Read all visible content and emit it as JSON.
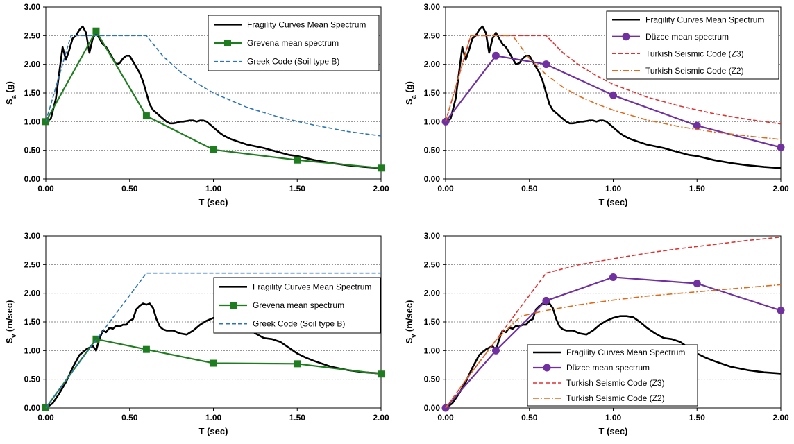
{
  "chart_data": [
    {
      "type": "line",
      "title": "",
      "xlabel": "T (sec)",
      "ylabel": {
        "main": "S",
        "sub": "a",
        "unit": " (g)"
      },
      "xlim": [
        0,
        2
      ],
      "ylim": [
        0,
        3
      ],
      "xticks": [
        "0.00",
        "0.50",
        "1.00",
        "1.50",
        "2.00"
      ],
      "yticks": [
        "0.00",
        "0.50",
        "1.00",
        "1.50",
        "2.00",
        "2.50",
        "3.00"
      ],
      "grid": "horizontal dashed",
      "legend_position": "top-right",
      "series": [
        {
          "name": "Fragility Curves Mean Spectrum",
          "color": "#000000",
          "style": "solid",
          "marker": "none",
          "x": [
            0,
            0.03,
            0.06,
            0.08,
            0.1,
            0.12,
            0.14,
            0.16,
            0.18,
            0.2,
            0.22,
            0.24,
            0.26,
            0.28,
            0.3,
            0.32,
            0.34,
            0.36,
            0.38,
            0.4,
            0.42,
            0.44,
            0.46,
            0.48,
            0.5,
            0.52,
            0.54,
            0.56,
            0.58,
            0.6,
            0.62,
            0.64,
            0.66,
            0.68,
            0.7,
            0.72,
            0.74,
            0.76,
            0.78,
            0.8,
            0.82,
            0.84,
            0.86,
            0.88,
            0.9,
            0.92,
            0.94,
            0.96,
            0.98,
            1.0,
            1.02,
            1.04,
            1.06,
            1.08,
            1.1,
            1.15,
            1.2,
            1.25,
            1.3,
            1.35,
            1.4,
            1.45,
            1.5,
            1.6,
            1.7,
            1.8,
            1.9,
            2.0
          ],
          "y": [
            1.0,
            1.05,
            1.4,
            1.85,
            2.3,
            2.08,
            2.25,
            2.45,
            2.5,
            2.6,
            2.66,
            2.55,
            2.2,
            2.45,
            2.55,
            2.45,
            2.35,
            2.3,
            2.2,
            2.1,
            2.0,
            2.02,
            2.1,
            2.15,
            2.15,
            2.05,
            1.95,
            1.85,
            1.7,
            1.5,
            1.3,
            1.2,
            1.15,
            1.1,
            1.05,
            1.0,
            0.97,
            0.97,
            0.98,
            1.0,
            1.0,
            1.01,
            1.02,
            1.02,
            1.0,
            1.02,
            1.02,
            1.0,
            0.95,
            0.9,
            0.85,
            0.8,
            0.76,
            0.73,
            0.7,
            0.65,
            0.6,
            0.57,
            0.54,
            0.5,
            0.46,
            0.42,
            0.4,
            0.33,
            0.28,
            0.24,
            0.21,
            0.19
          ]
        },
        {
          "name": "Grevena mean spectrum",
          "color": "#1e7d1e",
          "style": "solid",
          "marker": "square",
          "x": [
            0,
            0.3,
            0.6,
            1.0,
            1.5,
            2.0
          ],
          "y": [
            1.0,
            2.58,
            1.1,
            0.51,
            0.33,
            0.19
          ]
        },
        {
          "name": "Greek Code (Soil type B)",
          "color": "#2e75b6",
          "style": "dashed",
          "marker": "none",
          "x": [
            0,
            0.15,
            0.6,
            0.7,
            0.8,
            0.9,
            1.0,
            1.2,
            1.4,
            1.6,
            1.8,
            2.0
          ],
          "y": [
            1.0,
            2.5,
            2.5,
            2.14,
            1.875,
            1.67,
            1.5,
            1.25,
            1.07,
            0.94,
            0.83,
            0.75
          ]
        }
      ]
    },
    {
      "type": "line",
      "title": "",
      "xlabel": "T (sec)",
      "ylabel": {
        "main": "S",
        "sub": "a",
        "unit": " (g)"
      },
      "xlim": [
        0,
        2
      ],
      "ylim": [
        0,
        3
      ],
      "xticks": [
        "0.00",
        "0.50",
        "1.00",
        "1.50",
        "2.00"
      ],
      "yticks": [
        "0.00",
        "0.50",
        "1.00",
        "1.50",
        "2.00",
        "2.50",
        "3.00"
      ],
      "grid": "horizontal dashed",
      "legend_position": "top-right",
      "series": [
        {
          "name": "Fragility Curves Mean Spectrum",
          "color": "#000000",
          "style": "solid",
          "marker": "none",
          "x": [
            0,
            0.03,
            0.06,
            0.08,
            0.1,
            0.12,
            0.14,
            0.16,
            0.18,
            0.2,
            0.22,
            0.24,
            0.26,
            0.28,
            0.3,
            0.32,
            0.34,
            0.36,
            0.38,
            0.4,
            0.42,
            0.44,
            0.46,
            0.48,
            0.5,
            0.52,
            0.54,
            0.56,
            0.58,
            0.6,
            0.62,
            0.64,
            0.66,
            0.68,
            0.7,
            0.72,
            0.74,
            0.76,
            0.78,
            0.8,
            0.82,
            0.84,
            0.86,
            0.88,
            0.9,
            0.92,
            0.94,
            0.96,
            0.98,
            1.0,
            1.02,
            1.04,
            1.06,
            1.08,
            1.1,
            1.15,
            1.2,
            1.25,
            1.3,
            1.35,
            1.4,
            1.45,
            1.5,
            1.6,
            1.7,
            1.8,
            1.9,
            2.0
          ],
          "y": [
            1.0,
            1.05,
            1.4,
            1.85,
            2.3,
            2.08,
            2.25,
            2.45,
            2.5,
            2.6,
            2.66,
            2.55,
            2.2,
            2.45,
            2.55,
            2.45,
            2.35,
            2.3,
            2.2,
            2.1,
            2.0,
            2.02,
            2.1,
            2.15,
            2.15,
            2.05,
            1.95,
            1.85,
            1.7,
            1.5,
            1.3,
            1.2,
            1.15,
            1.1,
            1.05,
            1.0,
            0.97,
            0.97,
            0.98,
            1.0,
            1.0,
            1.01,
            1.02,
            1.02,
            1.0,
            1.02,
            1.02,
            1.0,
            0.95,
            0.9,
            0.85,
            0.8,
            0.76,
            0.73,
            0.7,
            0.65,
            0.6,
            0.57,
            0.54,
            0.5,
            0.46,
            0.42,
            0.4,
            0.33,
            0.28,
            0.24,
            0.21,
            0.19
          ]
        },
        {
          "name": "Düzce mean spectrum",
          "color": "#7030a0",
          "style": "solid",
          "marker": "circle",
          "x": [
            0,
            0.3,
            0.6,
            1.0,
            1.5,
            2.0
          ],
          "y": [
            1.0,
            2.15,
            2.0,
            1.46,
            0.93,
            0.55
          ]
        },
        {
          "name": "Turkish Seismic Code (Z3)",
          "color": "#e03030",
          "style": "dashed",
          "marker": "none",
          "x": [
            0,
            0.15,
            0.6,
            0.7,
            0.8,
            0.9,
            1.0,
            1.2,
            1.4,
            1.6,
            1.8,
            2.0
          ],
          "y": [
            1.0,
            2.5,
            2.5,
            2.2,
            1.98,
            1.8,
            1.65,
            1.43,
            1.27,
            1.14,
            1.04,
            0.96
          ]
        },
        {
          "name": "Turkish Seismic Code (Z2)",
          "color": "#e06a1a",
          "style": "dashdot",
          "marker": "none",
          "x": [
            0,
            0.15,
            0.4,
            0.5,
            0.6,
            0.7,
            0.8,
            0.9,
            1.0,
            1.2,
            1.4,
            1.6,
            1.8,
            2.0
          ],
          "y": [
            1.0,
            2.5,
            2.5,
            2.1,
            1.82,
            1.6,
            1.44,
            1.31,
            1.2,
            1.03,
            0.91,
            0.82,
            0.75,
            0.69
          ]
        }
      ]
    },
    {
      "type": "line",
      "title": "",
      "xlabel": "T (sec)",
      "ylabel": {
        "main": "S",
        "sub": "v",
        "unit": " (m/sec)"
      },
      "xlim": [
        0,
        2
      ],
      "ylim": [
        0,
        3
      ],
      "xticks": [
        "0.00",
        "0.50",
        "1.00",
        "1.50",
        "2.00"
      ],
      "yticks": [
        "0.00",
        "0.50",
        "1.00",
        "1.50",
        "2.00",
        "2.50",
        "3.00"
      ],
      "grid": "horizontal dashed",
      "legend_position": "center-right",
      "series": [
        {
          "name": "Fragility Curves Mean Spectrum",
          "color": "#000000",
          "style": "solid",
          "marker": "none",
          "x": [
            0,
            0.04,
            0.08,
            0.12,
            0.16,
            0.2,
            0.24,
            0.28,
            0.3,
            0.32,
            0.34,
            0.36,
            0.38,
            0.4,
            0.42,
            0.44,
            0.46,
            0.48,
            0.5,
            0.52,
            0.54,
            0.56,
            0.58,
            0.6,
            0.62,
            0.64,
            0.66,
            0.68,
            0.7,
            0.72,
            0.76,
            0.8,
            0.84,
            0.88,
            0.92,
            0.96,
            1.0,
            1.04,
            1.08,
            1.12,
            1.16,
            1.2,
            1.25,
            1.3,
            1.35,
            1.4,
            1.45,
            1.5,
            1.55,
            1.6,
            1.7,
            1.8,
            1.9,
            2.0
          ],
          "y": [
            0,
            0.08,
            0.25,
            0.45,
            0.7,
            0.92,
            1.02,
            1.08,
            1.0,
            1.2,
            1.35,
            1.32,
            1.4,
            1.38,
            1.43,
            1.42,
            1.45,
            1.45,
            1.52,
            1.55,
            1.72,
            1.78,
            1.82,
            1.8,
            1.82,
            1.74,
            1.55,
            1.42,
            1.37,
            1.35,
            1.35,
            1.3,
            1.28,
            1.35,
            1.45,
            1.52,
            1.57,
            1.6,
            1.6,
            1.58,
            1.5,
            1.4,
            1.3,
            1.22,
            1.2,
            1.15,
            1.05,
            0.95,
            0.88,
            0.82,
            0.72,
            0.66,
            0.62,
            0.6
          ]
        },
        {
          "name": "Grevena mean spectrum",
          "color": "#1e7d1e",
          "style": "solid",
          "marker": "square",
          "x": [
            0,
            0.3,
            0.6,
            1.0,
            1.5,
            2.0
          ],
          "y": [
            0,
            1.2,
            1.02,
            0.78,
            0.77,
            0.59
          ]
        },
        {
          "name": "Greek Code (Soil type B)",
          "color": "#2e75b6",
          "style": "dashed",
          "marker": "none",
          "x": [
            0,
            0.15,
            0.6,
            2.0
          ],
          "y": [
            0,
            0.6,
            2.35,
            2.35
          ]
        }
      ]
    },
    {
      "type": "line",
      "title": "",
      "xlabel": "T (sec)",
      "ylabel": {
        "main": "S",
        "sub": "v",
        "unit": " (m/sec)"
      },
      "xlim": [
        0,
        2
      ],
      "ylim": [
        0,
        3
      ],
      "xticks": [
        "0.00",
        "0.50",
        "1.00",
        "1.50",
        "2.00"
      ],
      "yticks": [
        "0.00",
        "0.50",
        "1.00",
        "1.50",
        "2.00",
        "2.50",
        "3.00"
      ],
      "grid": "horizontal dashed",
      "legend_position": "bottom-right",
      "series": [
        {
          "name": "Fragility Curves Mean Spectrum",
          "color": "#000000",
          "style": "solid",
          "marker": "none",
          "x": [
            0,
            0.04,
            0.08,
            0.12,
            0.16,
            0.2,
            0.24,
            0.28,
            0.3,
            0.32,
            0.34,
            0.36,
            0.38,
            0.4,
            0.42,
            0.44,
            0.46,
            0.48,
            0.5,
            0.52,
            0.54,
            0.56,
            0.58,
            0.6,
            0.62,
            0.64,
            0.66,
            0.68,
            0.7,
            0.72,
            0.76,
            0.8,
            0.84,
            0.88,
            0.92,
            0.96,
            1.0,
            1.04,
            1.08,
            1.12,
            1.16,
            1.2,
            1.25,
            1.3,
            1.35,
            1.4,
            1.45,
            1.5,
            1.55,
            1.6,
            1.7,
            1.8,
            1.9,
            2.0
          ],
          "y": [
            0,
            0.08,
            0.25,
            0.45,
            0.7,
            0.92,
            1.02,
            1.08,
            1.0,
            1.2,
            1.35,
            1.32,
            1.4,
            1.38,
            1.43,
            1.42,
            1.45,
            1.45,
            1.52,
            1.55,
            1.72,
            1.78,
            1.82,
            1.8,
            1.82,
            1.74,
            1.55,
            1.42,
            1.37,
            1.35,
            1.35,
            1.3,
            1.28,
            1.35,
            1.45,
            1.52,
            1.57,
            1.6,
            1.6,
            1.58,
            1.5,
            1.4,
            1.3,
            1.22,
            1.2,
            1.15,
            1.05,
            0.95,
            0.88,
            0.82,
            0.72,
            0.66,
            0.62,
            0.6
          ]
        },
        {
          "name": "Düzce mean spectrum",
          "color": "#7030a0",
          "style": "solid",
          "marker": "circle",
          "x": [
            0,
            0.3,
            0.6,
            1.0,
            1.5,
            2.0
          ],
          "y": [
            0,
            1.0,
            1.87,
            2.28,
            2.17,
            1.7
          ]
        },
        {
          "name": "Turkish Seismic Code (Z3)",
          "color": "#e03030",
          "style": "dashed",
          "marker": "none",
          "x": [
            0,
            0.15,
            0.3,
            0.45,
            0.6,
            0.8,
            1.0,
            1.2,
            1.4,
            1.6,
            1.8,
            2.0
          ],
          "y": [
            0,
            0.6,
            1.18,
            1.77,
            2.35,
            2.5,
            2.6,
            2.7,
            2.78,
            2.85,
            2.92,
            2.98
          ]
        },
        {
          "name": "Turkish Seismic Code (Z2)",
          "color": "#e06a1a",
          "style": "dashdot",
          "marker": "none",
          "x": [
            0,
            0.15,
            0.3,
            0.45,
            0.6,
            0.8,
            1.0,
            1.2,
            1.4,
            1.6,
            1.8,
            2.0
          ],
          "y": [
            0,
            0.6,
            1.18,
            1.6,
            1.7,
            1.8,
            1.88,
            1.95,
            2.0,
            2.05,
            2.1,
            2.15
          ]
        }
      ]
    }
  ]
}
